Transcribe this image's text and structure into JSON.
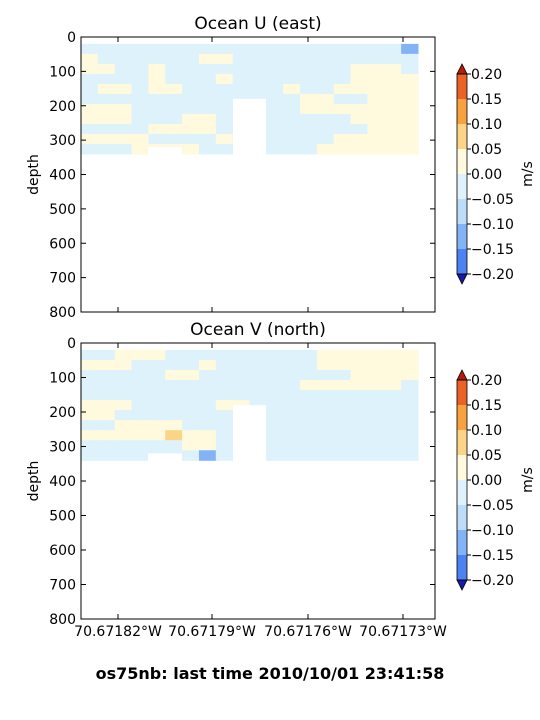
{
  "footer": "os75nb: last time 2010/10/01 23:41:58",
  "colors": {
    "levels": [
      -0.2,
      -0.15,
      -0.1,
      -0.05,
      0.0,
      0.05,
      0.1,
      0.15,
      0.2
    ],
    "fills": [
      "#2850f0",
      "#4c82f2",
      "#82b4f5",
      "#bddcfa",
      "#def2fc",
      "#fffadd",
      "#fcd486",
      "#f6a23e",
      "#ea6226",
      "#d33a10"
    ],
    "under": "#1a1aa8",
    "over": "#b41d0a",
    "masked": "#ffffff"
  },
  "chart_data": [
    {
      "type": "heatmap",
      "title": "Ocean U (east)",
      "ylabel": "depth",
      "xlabel": "",
      "ylim": [
        800,
        0
      ],
      "yticks": [
        0,
        100,
        200,
        300,
        400,
        500,
        600,
        700,
        800
      ],
      "x_ticks": [
        70.67182,
        70.67179,
        70.67176,
        70.67173
      ],
      "x_ticklabels": [],
      "colorbar": {
        "label": "m/s",
        "ticks": [
          0.2,
          0.15,
          0.1,
          0.05,
          0.0,
          -0.05,
          -0.1,
          -0.15,
          -0.2
        ],
        "ticklabels": [
          "0.20",
          "0.15",
          "0.10",
          "0.05",
          "0.00",
          "−0.05",
          "−0.10",
          "−0.15",
          "−0.20"
        ]
      },
      "cells": [
        [
          0,
          0,
          0,
          0,
          0,
          0,
          0,
          0,
          0,
          0,
          0,
          0,
          0,
          0,
          0,
          0,
          0,
          0,
          0,
          -1
        ],
        [
          1,
          0,
          0,
          0,
          0,
          0,
          0,
          1,
          1,
          0,
          0,
          0,
          0,
          0,
          0,
          0,
          0,
          0,
          0,
          0
        ],
        [
          1,
          1,
          0,
          0,
          1,
          0,
          0,
          0,
          0,
          0,
          0,
          0,
          0,
          0,
          0,
          0,
          1,
          1,
          1,
          0
        ],
        [
          0,
          0,
          0,
          0,
          1,
          0,
          0,
          0,
          1,
          0,
          0,
          0,
          0,
          0,
          0,
          0,
          1,
          1,
          1,
          1
        ],
        [
          0,
          1,
          1,
          0,
          1,
          1,
          0,
          0,
          0,
          0,
          0,
          0,
          1,
          0,
          0,
          1,
          1,
          1,
          1,
          1
        ],
        [
          0,
          0,
          0,
          0,
          0,
          0,
          0,
          0,
          0,
          0,
          0,
          0,
          0,
          1,
          1,
          0,
          0,
          1,
          1,
          1
        ],
        [
          1,
          1,
          1,
          0,
          0,
          0,
          0,
          0,
          0,
          0,
          0,
          0,
          0,
          1,
          1,
          1,
          1,
          1,
          1,
          1
        ],
        [
          1,
          1,
          1,
          0,
          0,
          0,
          1,
          1,
          0,
          0,
          0,
          0,
          0,
          0,
          0,
          0,
          1,
          1,
          1,
          1
        ],
        [
          0,
          0,
          0,
          0,
          1,
          1,
          1,
          1,
          0,
          0,
          0,
          0,
          0,
          0,
          0,
          0,
          0,
          1,
          1,
          1
        ],
        [
          1,
          1,
          1,
          1,
          0,
          0,
          0,
          0,
          1,
          0,
          0,
          0,
          0,
          0,
          0,
          1,
          1,
          1,
          1,
          1
        ],
        [
          0,
          0,
          0,
          1,
          1,
          1,
          1,
          0,
          0,
          0,
          0,
          0,
          0,
          0,
          1,
          1,
          1,
          1,
          1,
          1
        ]
      ]
    },
    {
      "type": "heatmap",
      "title": "Ocean V (north)",
      "ylabel": "depth",
      "xlabel": "",
      "ylim": [
        800,
        0
      ],
      "yticks": [
        0,
        100,
        200,
        300,
        400,
        500,
        600,
        700,
        800
      ],
      "x_ticks": [
        70.67182,
        70.67179,
        70.67176,
        70.67173
      ],
      "x_ticklabels": [
        "70.67182°W",
        "70.67179°W",
        "70.67176°W",
        "70.67173°W"
      ],
      "colorbar": {
        "label": "m/s",
        "ticks": [
          0.2,
          0.15,
          0.1,
          0.05,
          0.0,
          -0.05,
          -0.1,
          -0.15,
          -0.2
        ],
        "ticklabels": [
          "0.20",
          "0.15",
          "0.10",
          "0.05",
          "0.00",
          "−0.05",
          "−0.10",
          "−0.15",
          "−0.20"
        ]
      },
      "cells": [
        [
          0,
          0,
          1,
          1,
          1,
          0,
          0,
          0,
          0,
          0,
          0,
          0,
          0,
          0,
          1,
          1,
          1,
          1,
          1,
          1
        ],
        [
          1,
          1,
          1,
          0,
          0,
          0,
          0,
          1,
          0,
          0,
          0,
          0,
          0,
          0,
          1,
          1,
          1,
          1,
          1,
          1
        ],
        [
          0,
          0,
          0,
          0,
          0,
          1,
          1,
          0,
          0,
          0,
          0,
          0,
          0,
          0,
          0,
          0,
          1,
          1,
          1,
          1
        ],
        [
          0,
          0,
          0,
          0,
          0,
          0,
          0,
          0,
          0,
          0,
          0,
          0,
          0,
          1,
          1,
          1,
          1,
          1,
          1,
          0
        ],
        [
          0,
          0,
          0,
          0,
          0,
          0,
          0,
          0,
          0,
          0,
          0,
          0,
          0,
          0,
          0,
          0,
          0,
          0,
          0,
          0
        ],
        [
          1,
          1,
          1,
          0,
          0,
          0,
          0,
          0,
          1,
          1,
          0,
          0,
          0,
          0,
          0,
          0,
          0,
          0,
          0,
          0
        ],
        [
          1,
          1,
          0,
          0,
          0,
          0,
          0,
          0,
          0,
          0,
          0,
          0,
          0,
          0,
          0,
          0,
          0,
          0,
          0,
          0
        ],
        [
          0,
          0,
          1,
          1,
          1,
          1,
          0,
          0,
          0,
          0,
          0,
          0,
          0,
          0,
          0,
          0,
          0,
          0,
          0,
          0
        ],
        [
          1,
          1,
          1,
          1,
          1,
          2,
          1,
          1,
          0,
          0,
          0,
          0,
          0,
          0,
          0,
          0,
          0,
          0,
          0,
          0
        ],
        [
          0,
          0,
          0,
          0,
          0,
          0,
          1,
          1,
          0,
          0,
          0,
          0,
          0,
          0,
          0,
          0,
          0,
          0,
          0,
          0
        ],
        [
          0,
          0,
          0,
          0,
          0,
          0,
          0,
          -1,
          0,
          0,
          0,
          0,
          0,
          0,
          0,
          0,
          0,
          0,
          0,
          0
        ]
      ]
    }
  ]
}
